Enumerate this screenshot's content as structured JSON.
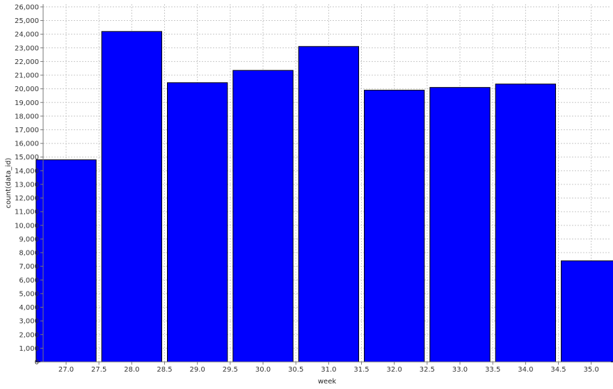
{
  "chart_data": {
    "type": "bar",
    "title": "",
    "xlabel": "week",
    "ylabel": "count(data_id)",
    "x_ticks": [
      "27.0",
      "27.5",
      "28.0",
      "28.5",
      "29.0",
      "29.5",
      "30.0",
      "30.5",
      "31.0",
      "31.5",
      "32.0",
      "32.5",
      "33.0",
      "33.5",
      "34.0",
      "34.5",
      "35.0"
    ],
    "x_tick_values": [
      27.0,
      27.5,
      28.0,
      28.5,
      29.0,
      29.5,
      30.0,
      30.5,
      31.0,
      31.5,
      32.0,
      32.5,
      33.0,
      33.5,
      34.0,
      34.5,
      35.0
    ],
    "xlim": [
      26.65,
      35.3
    ],
    "y_ticks": [
      "0",
      "1,000",
      "2,000",
      "3,000",
      "4,000",
      "5,000",
      "6,000",
      "7,000",
      "8,000",
      "9,000",
      "10,000",
      "11,000",
      "12,000",
      "13,000",
      "14,000",
      "15,000",
      "16,000",
      "17,000",
      "18,000",
      "19,000",
      "20,000",
      "21,000",
      "22,000",
      "23,000",
      "24,000",
      "25,000",
      "26,000"
    ],
    "ylim": [
      0,
      26200
    ],
    "bin_width": 1.0,
    "x": [
      27.0,
      28.0,
      29.0,
      30.0,
      31.0,
      32.0,
      33.0,
      34.0,
      35.0
    ],
    "values": [
      14800,
      24200,
      20450,
      21350,
      23100,
      19900,
      20100,
      20350,
      7400
    ],
    "bar_color": "#0000ff",
    "bar_edge_color": "#000000",
    "grid": true,
    "grid_color": "#c8c8c8",
    "legend": "none"
  }
}
